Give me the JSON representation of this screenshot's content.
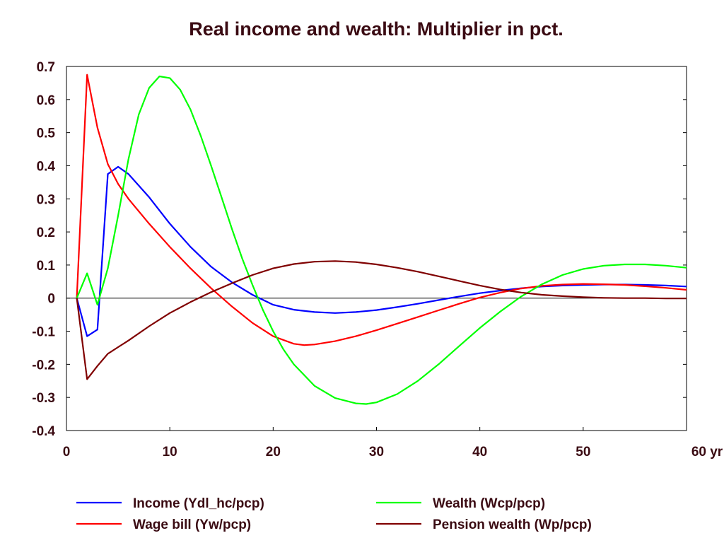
{
  "chart_data": {
    "type": "line",
    "title": "Real income and wealth: Multiplier in pct.",
    "xlabel": "",
    "ylabel": "",
    "xlim": [
      0,
      60
    ],
    "ylim": [
      -0.4,
      0.7
    ],
    "x_ticks": [
      0,
      10,
      20,
      30,
      40,
      50,
      60
    ],
    "x_tick_labels": [
      "0",
      "10",
      "20",
      "30",
      "40",
      "50",
      "60 yr"
    ],
    "y_ticks": [
      0.7,
      0.6,
      0.5,
      0.4,
      0.3,
      0.2,
      0.1,
      0,
      -0.1,
      -0.2,
      -0.3,
      -0.4
    ],
    "y_tick_labels": [
      "0.7",
      "0.6",
      "0.5",
      "0.4",
      "0.3",
      "0.2",
      "0.1",
      "0",
      "-0.1",
      "-0.2",
      "-0.3",
      "-0.4"
    ],
    "grid": false,
    "zero_line": true,
    "legend_position": "bottom",
    "series": [
      {
        "name": "Income (Ydl_hc/pcp)",
        "color": "#0000ff",
        "x": [
          1,
          2,
          3,
          4,
          5,
          6,
          8,
          10,
          12,
          14,
          16,
          18,
          20,
          22,
          24,
          26,
          28,
          30,
          32,
          34,
          36,
          38,
          40,
          42,
          44,
          46,
          48,
          50,
          52,
          54,
          56,
          58,
          60
        ],
        "y": [
          0,
          -0.115,
          -0.095,
          0.375,
          0.397,
          0.375,
          0.305,
          0.225,
          0.155,
          0.095,
          0.048,
          0.01,
          -0.02,
          -0.035,
          -0.042,
          -0.045,
          -0.042,
          -0.036,
          -0.027,
          -0.017,
          -0.006,
          0.005,
          0.015,
          0.023,
          0.03,
          0.035,
          0.038,
          0.04,
          0.041,
          0.041,
          0.04,
          0.038,
          0.035
        ]
      },
      {
        "name": "Wage bill (Yw/pcp)",
        "color": "#ff0000",
        "x": [
          1,
          2,
          3,
          4,
          5,
          6,
          8,
          10,
          12,
          14,
          16,
          18,
          20,
          22,
          23,
          24,
          26,
          28,
          30,
          32,
          34,
          36,
          38,
          40,
          42,
          44,
          46,
          48,
          50,
          52,
          54,
          56,
          58,
          60
        ],
        "y": [
          0,
          0.675,
          0.515,
          0.405,
          0.345,
          0.3,
          0.225,
          0.155,
          0.09,
          0.03,
          -0.025,
          -0.075,
          -0.115,
          -0.138,
          -0.142,
          -0.14,
          -0.13,
          -0.115,
          -0.097,
          -0.077,
          -0.057,
          -0.037,
          -0.017,
          0.002,
          0.017,
          0.029,
          0.037,
          0.041,
          0.043,
          0.042,
          0.04,
          0.036,
          0.031,
          0.025
        ]
      },
      {
        "name": "Wealth (Wcp/pcp)",
        "color": "#00ff00",
        "x": [
          1,
          2,
          3,
          4,
          5,
          6,
          7,
          8,
          9,
          10,
          11,
          12,
          13,
          14,
          15,
          16,
          17,
          18,
          19,
          20,
          21,
          22,
          24,
          26,
          28,
          29,
          30,
          32,
          34,
          36,
          38,
          40,
          42,
          44,
          46,
          48,
          50,
          52,
          54,
          56,
          58,
          60
        ],
        "y": [
          0,
          0.075,
          -0.02,
          0.09,
          0.25,
          0.42,
          0.555,
          0.635,
          0.67,
          0.665,
          0.63,
          0.57,
          0.49,
          0.4,
          0.305,
          0.21,
          0.12,
          0.04,
          -0.035,
          -0.1,
          -0.155,
          -0.2,
          -0.265,
          -0.302,
          -0.318,
          -0.32,
          -0.315,
          -0.29,
          -0.25,
          -0.2,
          -0.145,
          -0.09,
          -0.04,
          0.005,
          0.042,
          0.07,
          0.088,
          0.098,
          0.102,
          0.102,
          0.098,
          0.092
        ]
      },
      {
        "name": "Pension wealth (Wp/pcp)",
        "color": "#800000",
        "x": [
          1,
          2,
          3,
          4,
          5,
          6,
          8,
          10,
          12,
          14,
          16,
          18,
          20,
          22,
          24,
          26,
          28,
          30,
          32,
          34,
          36,
          38,
          40,
          42,
          44,
          46,
          48,
          50,
          52,
          54,
          56,
          58,
          60
        ],
        "y": [
          0,
          -0.245,
          -0.205,
          -0.168,
          -0.148,
          -0.128,
          -0.085,
          -0.045,
          -0.012,
          0.018,
          0.045,
          0.07,
          0.09,
          0.103,
          0.11,
          0.112,
          0.109,
          0.102,
          0.092,
          0.08,
          0.066,
          0.052,
          0.038,
          0.026,
          0.017,
          0.01,
          0.006,
          0.003,
          0.001,
          0.0,
          0.0,
          -0.001,
          -0.001
        ]
      }
    ]
  }
}
